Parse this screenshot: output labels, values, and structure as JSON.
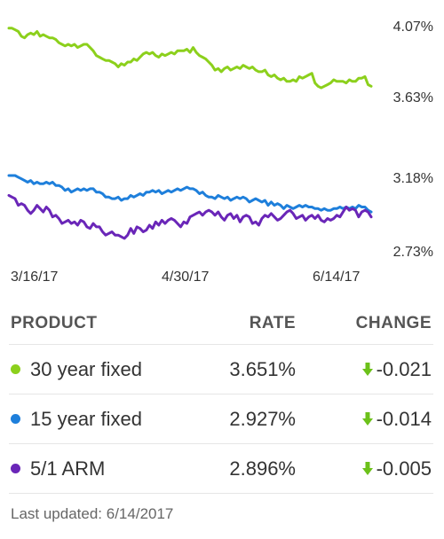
{
  "colors": {
    "green": "#8cd01c",
    "blue": "#1e7fdb",
    "purple": "#6a26b8",
    "arrow_green": "#6cc11a"
  },
  "chart_data": [
    {
      "type": "line",
      "series": [
        {
          "name": "30 year fixed",
          "color": "#8cd01c",
          "values": [
            4.06,
            4.06,
            4.05,
            4.04,
            4.01,
            4.0,
            4.02,
            4.03,
            4.02,
            4.04,
            4.01,
            4.02,
            4.01,
            4.0,
            4.0,
            3.99,
            3.97,
            3.96,
            3.95,
            3.96,
            3.95,
            3.96,
            3.94,
            3.95,
            3.96,
            3.96,
            3.94,
            3.92,
            3.89,
            3.88,
            3.87,
            3.86,
            3.86,
            3.85,
            3.84,
            3.82,
            3.84,
            3.83,
            3.85,
            3.85,
            3.87,
            3.86,
            3.88,
            3.9,
            3.91,
            3.9,
            3.91,
            3.89,
            3.88,
            3.9,
            3.89,
            3.9,
            3.91,
            3.9,
            3.92,
            3.92,
            3.92,
            3.93,
            3.91,
            3.94,
            3.91,
            3.89,
            3.88,
            3.87,
            3.85,
            3.83,
            3.8,
            3.81,
            3.79,
            3.81,
            3.82,
            3.8,
            3.81,
            3.82,
            3.81,
            3.83,
            3.82,
            3.81,
            3.82,
            3.8,
            3.79,
            3.79,
            3.8,
            3.77,
            3.76,
            3.77,
            3.75,
            3.74,
            3.75,
            3.73,
            3.73,
            3.74,
            3.73,
            3.76,
            3.75,
            3.76,
            3.77,
            3.78,
            3.72,
            3.7,
            3.69,
            3.7,
            3.71,
            3.72,
            3.74,
            3.73,
            3.73,
            3.73,
            3.72,
            3.74,
            3.73,
            3.73,
            3.75,
            3.75,
            3.76,
            3.71,
            3.7
          ]
        }
      ],
      "yticks": [
        "4.07%",
        "3.63%"
      ],
      "ylim": [
        3.63,
        4.07
      ]
    },
    {
      "type": "line",
      "series": [
        {
          "name": "15 year fixed",
          "color": "#1e7fdb",
          "values": [
            3.18,
            3.18,
            3.18,
            3.17,
            3.16,
            3.15,
            3.14,
            3.15,
            3.13,
            3.14,
            3.13,
            3.13,
            3.14,
            3.13,
            3.14,
            3.12,
            3.12,
            3.11,
            3.09,
            3.1,
            3.08,
            3.09,
            3.1,
            3.09,
            3.1,
            3.09,
            3.1,
            3.1,
            3.08,
            3.08,
            3.07,
            3.05,
            3.05,
            3.04,
            3.04,
            3.05,
            3.03,
            3.04,
            3.04,
            3.06,
            3.05,
            3.06,
            3.07,
            3.06,
            3.08,
            3.08,
            3.09,
            3.08,
            3.09,
            3.07,
            3.08,
            3.09,
            3.08,
            3.09,
            3.1,
            3.09,
            3.1,
            3.11,
            3.1,
            3.1,
            3.09,
            3.07,
            3.08,
            3.06,
            3.05,
            3.05,
            3.04,
            3.06,
            3.05,
            3.04,
            3.05,
            3.03,
            3.04,
            3.05,
            3.04,
            3.05,
            3.04,
            3.02,
            3.03,
            3.04,
            3.03,
            3.02,
            3.03,
            3.0,
            3.02,
            3.0,
            3.01,
            3.0,
            2.98,
            3.0,
            2.99,
            2.98,
            2.99,
            3.0,
            2.99,
            3.0,
            2.99,
            2.99,
            2.98,
            2.98,
            2.97,
            2.98,
            2.97,
            2.97,
            2.98,
            2.98,
            2.99,
            2.98,
            2.99,
            2.98,
            2.99,
            2.98,
            3.0,
            2.99,
            2.99,
            2.97,
            2.96
          ]
        },
        {
          "name": "5/1 ARM",
          "color": "#6a26b8",
          "values": [
            3.06,
            3.05,
            3.04,
            3.0,
            3.01,
            3.0,
            2.97,
            2.95,
            2.97,
            3.0,
            2.98,
            2.96,
            2.99,
            2.97,
            2.93,
            2.94,
            2.92,
            2.89,
            2.9,
            2.91,
            2.89,
            2.9,
            2.88,
            2.91,
            2.9,
            2.87,
            2.86,
            2.89,
            2.87,
            2.87,
            2.84,
            2.82,
            2.83,
            2.84,
            2.82,
            2.82,
            2.81,
            2.8,
            2.82,
            2.86,
            2.83,
            2.87,
            2.86,
            2.84,
            2.85,
            2.88,
            2.86,
            2.9,
            2.88,
            2.91,
            2.89,
            2.91,
            2.92,
            2.91,
            2.89,
            2.87,
            2.9,
            2.89,
            2.93,
            2.94,
            2.95,
            2.96,
            2.94,
            2.96,
            2.97,
            2.96,
            2.94,
            2.96,
            2.93,
            2.91,
            2.94,
            2.95,
            2.92,
            2.94,
            2.9,
            2.93,
            2.94,
            2.93,
            2.89,
            2.9,
            2.88,
            2.92,
            2.94,
            2.93,
            2.95,
            2.93,
            2.91,
            2.92,
            2.94,
            2.96,
            2.97,
            2.95,
            2.92,
            2.93,
            2.94,
            2.91,
            2.93,
            2.94,
            2.92,
            2.94,
            2.91,
            2.9,
            2.92,
            2.91,
            2.92,
            2.94,
            2.93,
            2.96,
            2.99,
            2.97,
            2.98,
            2.97,
            2.93,
            2.96,
            2.97,
            2.96,
            2.93
          ]
        }
      ],
      "yticks": [
        "3.18%",
        "2.73%"
      ],
      "ylim": [
        2.73,
        3.18
      ]
    }
  ],
  "xticks": [
    "3/16/17",
    "4/30/17",
    "6/14/17"
  ],
  "table": {
    "headers": {
      "product": "PRODUCT",
      "rate": "RATE",
      "change": "CHANGE"
    },
    "rows": [
      {
        "product": "30 year fixed",
        "rate": "3.651%",
        "change": "-0.021"
      },
      {
        "product": "15 year fixed",
        "rate": "2.927%",
        "change": "-0.014"
      },
      {
        "product": "5/1 ARM",
        "rate": "2.896%",
        "change": "-0.005"
      }
    ]
  },
  "footer": {
    "updated": "Last updated: 6/14/2017"
  }
}
